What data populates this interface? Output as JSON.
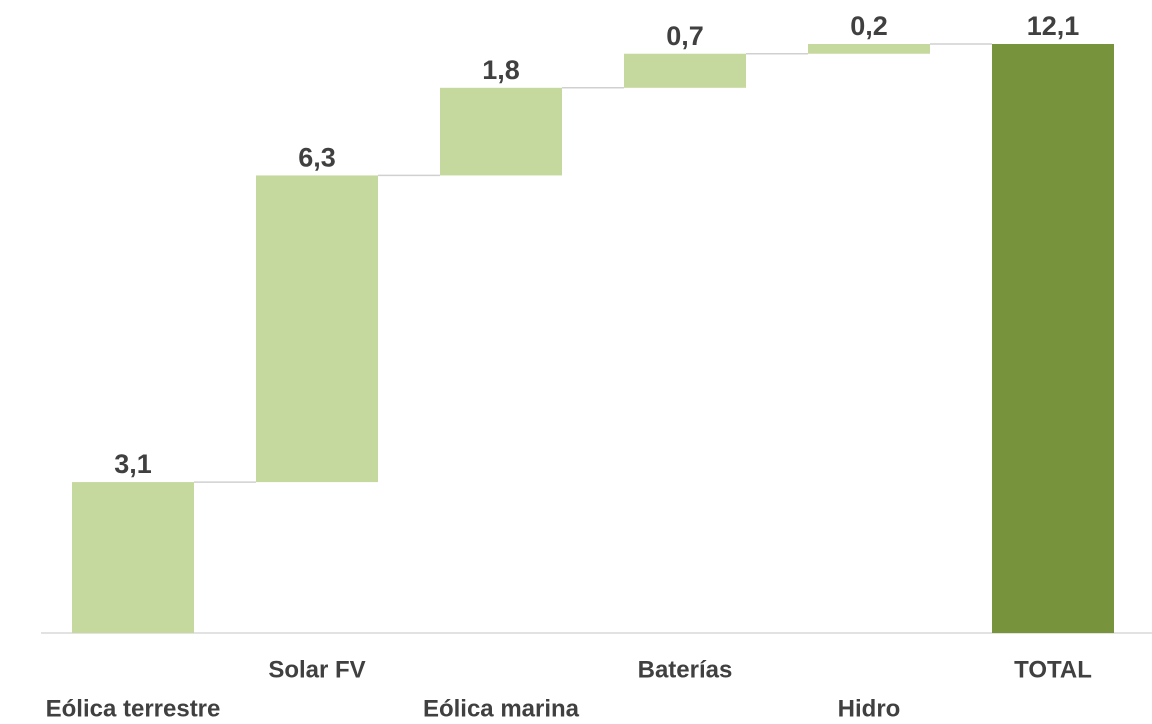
{
  "chart_data": {
    "type": "waterfall",
    "categories": [
      "Eólica terrestre",
      "Solar FV",
      "Eólica marina",
      "Baterías",
      "Hidro",
      "TOTAL"
    ],
    "values": [
      3.1,
      6.3,
      1.8,
      0.7,
      0.2,
      12.1
    ],
    "value_labels": [
      "3,1",
      "6,3",
      "1,8",
      "0,7",
      "0,2",
      "12,1"
    ],
    "measure": [
      "relative",
      "relative",
      "relative",
      "relative",
      "relative",
      "total"
    ],
    "increase_color": "#c5d89d",
    "total_color": "#77933c",
    "ylim": [
      0,
      12.1
    ]
  }
}
